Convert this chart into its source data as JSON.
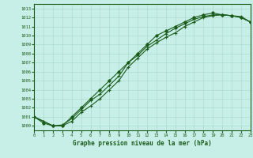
{
  "title": "Graphe pression niveau de la mer (hPa)",
  "bg_color": "#c8eee8",
  "grid_color": "#aaddcc",
  "line_color": "#1a5c1a",
  "xlim": [
    0,
    23
  ],
  "ylim": [
    999.5,
    1013.5
  ],
  "xticks": [
    0,
    1,
    2,
    3,
    4,
    5,
    6,
    7,
    8,
    9,
    10,
    11,
    12,
    13,
    14,
    15,
    16,
    17,
    18,
    19,
    20,
    21,
    22,
    23
  ],
  "yticks": [
    1000,
    1001,
    1002,
    1003,
    1004,
    1005,
    1006,
    1007,
    1008,
    1009,
    1010,
    1011,
    1012,
    1013
  ],
  "series1_x": [
    0,
    1,
    2,
    3,
    4,
    5,
    6,
    7,
    8,
    9,
    10,
    11,
    12,
    13,
    14,
    15,
    16,
    17,
    18,
    19,
    20,
    21,
    22,
    23
  ],
  "series1_y": [
    1001.0,
    1000.5,
    1000.0,
    1000.0,
    1000.5,
    1001.5,
    1002.2,
    1003.0,
    1004.0,
    1005.0,
    1006.5,
    1007.5,
    1008.5,
    1009.2,
    1009.8,
    1010.3,
    1011.0,
    1011.5,
    1012.0,
    1012.2,
    1012.3,
    1012.2,
    1012.0,
    1011.5
  ],
  "series2_x": [
    0,
    1,
    2,
    3,
    4,
    5,
    6,
    7,
    8,
    9,
    10,
    11,
    12,
    13,
    14,
    15,
    16,
    17,
    18,
    19,
    20,
    21,
    22,
    23
  ],
  "series2_y": [
    1001.0,
    1000.5,
    1000.0,
    1000.1,
    1000.8,
    1001.8,
    1002.8,
    1003.5,
    1004.5,
    1005.5,
    1007.0,
    1007.8,
    1008.8,
    1009.5,
    1010.2,
    1010.8,
    1011.3,
    1011.8,
    1012.1,
    1012.3,
    1012.3,
    1012.2,
    1012.1,
    1011.5
  ],
  "series3_x": [
    0,
    1,
    2,
    3,
    4,
    5,
    6,
    7,
    8,
    9,
    10,
    11,
    12,
    13,
    14,
    15,
    16,
    17,
    18,
    19,
    20,
    21,
    22,
    23
  ],
  "series3_y": [
    1001.0,
    1000.3,
    1000.0,
    1000.0,
    1001.0,
    1002.0,
    1003.0,
    1004.0,
    1005.0,
    1006.0,
    1007.0,
    1008.0,
    1009.0,
    1010.0,
    1010.5,
    1011.0,
    1011.5,
    1012.0,
    1012.3,
    1012.5,
    1012.3,
    1012.2,
    1012.0,
    1011.5
  ]
}
